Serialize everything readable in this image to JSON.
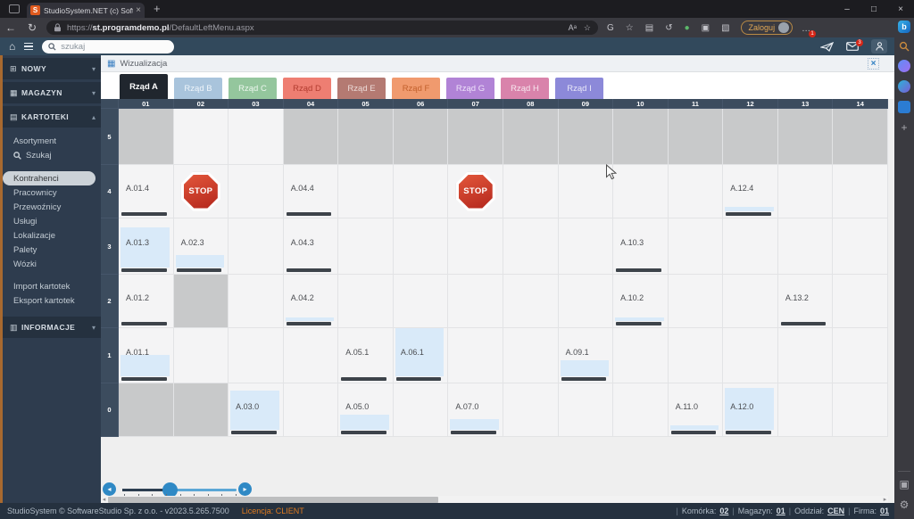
{
  "browser": {
    "tab_title": "StudioSystem.NET (c) SoftwareSt",
    "url_scheme": "https://",
    "url_host": "st.programdemo.pl",
    "url_path": "/DefaultLeftMenu.aspx",
    "login_label": "Zaloguj",
    "more_badge": "1",
    "nav_ext_icons": [
      {
        "name": "browser-essentials-icon",
        "glyph": "G"
      },
      {
        "name": "add-favorite-icon",
        "glyph": "☆"
      },
      {
        "name": "collections-icon",
        "glyph": "▤"
      },
      {
        "name": "history-icon",
        "glyph": "↺"
      },
      {
        "name": "extension-green-icon",
        "glyph": "●",
        "color": "#5cb86a"
      },
      {
        "name": "extension-icon",
        "glyph": "▣"
      },
      {
        "name": "web-capture-icon",
        "glyph": "▧"
      }
    ]
  },
  "app_toolbar": {
    "search_placeholder": "szukaj",
    "mail_badge": "3"
  },
  "sidebar": {
    "sections": [
      {
        "label": "NOWY",
        "expanded": false
      },
      {
        "label": "MAGAZYN",
        "expanded": false
      },
      {
        "label": "KARTOTEKI",
        "expanded": true
      }
    ],
    "kartoteki_menu": {
      "group1": [
        {
          "label": "Asortyment"
        },
        {
          "label": "Szukaj",
          "icon": "search"
        }
      ],
      "group2": [
        {
          "label": "Kontrahenci",
          "selected": true
        },
        {
          "label": "Pracownicy"
        },
        {
          "label": "Przewoźnicy"
        },
        {
          "label": "Usługi"
        },
        {
          "label": "Lokalizacje"
        },
        {
          "label": "Palety"
        },
        {
          "label": "Wózki"
        }
      ],
      "group3": [
        {
          "label": "Import kartotek"
        },
        {
          "label": "Eksport kartotek"
        }
      ]
    },
    "informacje_label": "INFORMACJE"
  },
  "panel": {
    "title": "Wizualizacja"
  },
  "tabs": [
    {
      "label": "Rząd A",
      "active": true,
      "bg": "#20262e",
      "text": "#ffffff"
    },
    {
      "label": "Rząd B",
      "bg": "#a9c4dc",
      "text": "#eef4fa"
    },
    {
      "label": "Rząd C",
      "bg": "#94c69d",
      "text": "#edf7ef"
    },
    {
      "label": "Rząd D",
      "bg": "#ee7e72",
      "text": "#b23c30"
    },
    {
      "label": "Rząd E",
      "bg": "#b47a72",
      "text": "#ecdbd8"
    },
    {
      "label": "Rząd F",
      "bg": "#f09a6e",
      "text": "#c2602c"
    },
    {
      "label": "Rząd G",
      "bg": "#b183d6",
      "text": "#eee2fa"
    },
    {
      "label": "Rząd H",
      "bg": "#d983ab",
      "text": "#f7e7ef"
    },
    {
      "label": "Rząd I",
      "bg": "#8c89d9",
      "text": "#e9e8f8"
    }
  ],
  "grid": {
    "columns": [
      "01",
      "02",
      "03",
      "04",
      "05",
      "06",
      "07",
      "08",
      "09",
      "10",
      "11",
      "12",
      "13",
      "14"
    ],
    "rows": [
      "5",
      "4",
      "3",
      "2",
      "1",
      "0"
    ],
    "gray_cells": [
      [
        "5",
        "01"
      ],
      [
        "5",
        "04"
      ],
      [
        "5",
        "05"
      ],
      [
        "5",
        "06"
      ],
      [
        "5",
        "07"
      ],
      [
        "5",
        "08"
      ],
      [
        "5",
        "09"
      ],
      [
        "5",
        "10"
      ],
      [
        "5",
        "11"
      ],
      [
        "5",
        "12"
      ],
      [
        "5",
        "13"
      ],
      [
        "5",
        "14"
      ],
      [
        "2",
        "02"
      ],
      [
        "0",
        "01"
      ],
      [
        "0",
        "02"
      ]
    ],
    "stop_label": "STOP",
    "stops": [
      {
        "row": "4",
        "col": "02"
      },
      {
        "row": "4",
        "col": "07"
      }
    ],
    "locations": [
      {
        "label": "A.01.4",
        "row": "4",
        "col": "01",
        "fill": 0
      },
      {
        "label": "A.04.4",
        "row": "4",
        "col": "04",
        "fill": 0
      },
      {
        "label": "A.12.4",
        "row": "4",
        "col": "12",
        "fill": 8
      },
      {
        "label": "A.01.3",
        "row": "3",
        "col": "01",
        "fill": 72
      },
      {
        "label": "A.02.3",
        "row": "3",
        "col": "02",
        "fill": 22
      },
      {
        "label": "A.04.3",
        "row": "3",
        "col": "04",
        "fill": 0
      },
      {
        "label": "A.10.3",
        "row": "3",
        "col": "10",
        "fill": 0
      },
      {
        "label": "A.01.2",
        "row": "2",
        "col": "01",
        "fill": 0
      },
      {
        "label": "A.04.2",
        "row": "2",
        "col": "04",
        "fill": 6
      },
      {
        "label": "A.10.2",
        "row": "2",
        "col": "10",
        "fill": 6
      },
      {
        "label": "A.13.2",
        "row": "2",
        "col": "13",
        "fill": 0
      },
      {
        "label": "A.01.1",
        "row": "1",
        "col": "01",
        "fill": 40
      },
      {
        "label": "A.05.1",
        "row": "1",
        "col": "05",
        "fill": 0
      },
      {
        "label": "A.06.1",
        "row": "1",
        "col": "06",
        "fill": 88
      },
      {
        "label": "A.09.1",
        "row": "1",
        "col": "09",
        "fill": 30
      },
      {
        "label": "A.03.0",
        "row": "0",
        "col": "03",
        "fill": 75
      },
      {
        "label": "A.05.0",
        "row": "0",
        "col": "05",
        "fill": 28
      },
      {
        "label": "A.07.0",
        "row": "0",
        "col": "07",
        "fill": 20
      },
      {
        "label": "A.11.0",
        "row": "0",
        "col": "11",
        "fill": 8
      },
      {
        "label": "A.12.0",
        "row": "0",
        "col": "12",
        "fill": 80
      }
    ]
  },
  "slider": {
    "ticks": 9
  },
  "statusbar": {
    "left": "StudioSystem © SoftwareStudio Sp. z o.o. - v2023.5.265.7500",
    "license": "Licencja: CLIENT",
    "segments": [
      {
        "label": "Komórka:",
        "value": "02"
      },
      {
        "label": "Magazyn:",
        "value": "01"
      },
      {
        "label": "Oddział:",
        "value": "CEN"
      },
      {
        "label": "Firma:",
        "value": "01"
      }
    ]
  },
  "icons": {
    "favicon_letter": "S",
    "close": "×",
    "minimize": "–",
    "maximize": "□",
    "new_tab": "+",
    "back": "←",
    "refresh": "↻",
    "read_aloud": "Aᵃ",
    "favorite_star": "☆",
    "more": "…",
    "home": "⌂",
    "chevron_down": "▾",
    "chevron_up": "▴",
    "section_new": "⊞",
    "section_magazyn": "▦",
    "section_kartoteki": "▤",
    "section_informacje": "▥",
    "panel_grid": "▦",
    "slider_prev": "◂",
    "slider_next": "▸",
    "scroll_left": "◂",
    "scroll_right": "▸",
    "bing": "b",
    "plus": "+",
    "sidebar_panel": "▣",
    "gear": "⚙"
  }
}
